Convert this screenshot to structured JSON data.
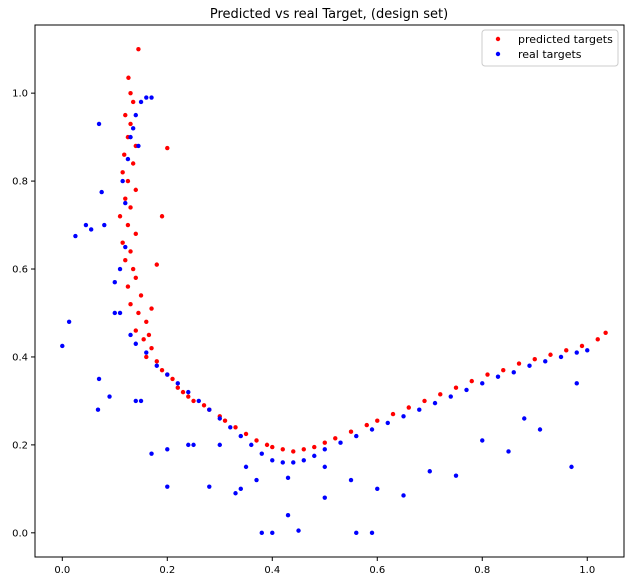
{
  "chart_data": {
    "type": "scatter",
    "title": "Predicted vs real Target, (design set)",
    "xlabel": "",
    "ylabel": "",
    "xlim": [
      -0.052,
      1.07
    ],
    "ylim": [
      -0.055,
      1.155
    ],
    "xticks": [
      "0.0",
      "0.2",
      "0.4",
      "0.6",
      "0.8",
      "1.0"
    ],
    "yticks": [
      "0.0",
      "0.2",
      "0.4",
      "0.6",
      "0.8",
      "1.0"
    ],
    "grid": false,
    "legend_position": "top-right",
    "series": [
      {
        "name": "predicted targets",
        "color": "#ff0000",
        "marker": "dot",
        "points": [
          [
            0.145,
            1.1
          ],
          [
            0.126,
            1.035
          ],
          [
            0.13,
            1.0
          ],
          [
            0.135,
            0.98
          ],
          [
            0.12,
            0.95
          ],
          [
            0.13,
            0.93
          ],
          [
            0.125,
            0.9
          ],
          [
            0.14,
            0.88
          ],
          [
            0.118,
            0.86
          ],
          [
            0.135,
            0.84
          ],
          [
            0.115,
            0.82
          ],
          [
            0.125,
            0.8
          ],
          [
            0.14,
            0.78
          ],
          [
            0.12,
            0.76
          ],
          [
            0.13,
            0.74
          ],
          [
            0.11,
            0.72
          ],
          [
            0.125,
            0.7
          ],
          [
            0.14,
            0.68
          ],
          [
            0.115,
            0.66
          ],
          [
            0.13,
            0.64
          ],
          [
            0.12,
            0.62
          ],
          [
            0.135,
            0.6
          ],
          [
            0.14,
            0.58
          ],
          [
            0.125,
            0.56
          ],
          [
            0.15,
            0.54
          ],
          [
            0.13,
            0.52
          ],
          [
            0.145,
            0.5
          ],
          [
            0.16,
            0.48
          ],
          [
            0.14,
            0.46
          ],
          [
            0.155,
            0.44
          ],
          [
            0.17,
            0.42
          ],
          [
            0.16,
            0.4
          ],
          [
            0.18,
            0.39
          ],
          [
            0.19,
            0.37
          ],
          [
            0.2,
            0.36
          ],
          [
            0.21,
            0.35
          ],
          [
            0.22,
            0.33
          ],
          [
            0.23,
            0.32
          ],
          [
            0.24,
            0.31
          ],
          [
            0.25,
            0.3
          ],
          [
            0.27,
            0.29
          ],
          [
            0.28,
            0.28
          ],
          [
            0.3,
            0.265
          ],
          [
            0.31,
            0.255
          ],
          [
            0.33,
            0.24
          ],
          [
            0.35,
            0.225
          ],
          [
            0.37,
            0.21
          ],
          [
            0.39,
            0.2
          ],
          [
            0.4,
            0.195
          ],
          [
            0.42,
            0.19
          ],
          [
            0.44,
            0.185
          ],
          [
            0.46,
            0.19
          ],
          [
            0.48,
            0.195
          ],
          [
            0.5,
            0.205
          ],
          [
            0.52,
            0.215
          ],
          [
            0.55,
            0.23
          ],
          [
            0.58,
            0.245
          ],
          [
            0.6,
            0.255
          ],
          [
            0.63,
            0.27
          ],
          [
            0.66,
            0.285
          ],
          [
            0.69,
            0.3
          ],
          [
            0.72,
            0.315
          ],
          [
            0.75,
            0.33
          ],
          [
            0.78,
            0.345
          ],
          [
            0.81,
            0.36
          ],
          [
            0.84,
            0.37
          ],
          [
            0.87,
            0.385
          ],
          [
            0.9,
            0.395
          ],
          [
            0.93,
            0.405
          ],
          [
            0.96,
            0.415
          ],
          [
            0.99,
            0.425
          ],
          [
            1.02,
            0.44
          ],
          [
            1.035,
            0.455
          ],
          [
            0.2,
            0.875
          ],
          [
            0.19,
            0.72
          ],
          [
            0.18,
            0.61
          ],
          [
            0.17,
            0.51
          ],
          [
            0.165,
            0.45
          ]
        ]
      },
      {
        "name": "real targets",
        "color": "#0000ff",
        "marker": "dot",
        "points": [
          [
            0.0,
            0.425
          ],
          [
            0.013,
            0.48
          ],
          [
            0.025,
            0.675
          ],
          [
            0.045,
            0.7
          ],
          [
            0.055,
            0.69
          ],
          [
            0.07,
            0.93
          ],
          [
            0.075,
            0.775
          ],
          [
            0.08,
            0.7
          ],
          [
            0.07,
            0.35
          ],
          [
            0.068,
            0.28
          ],
          [
            0.09,
            0.31
          ],
          [
            0.1,
            0.5
          ],
          [
            0.11,
            0.6
          ],
          [
            0.12,
            0.65
          ],
          [
            0.115,
            0.8
          ],
          [
            0.125,
            0.85
          ],
          [
            0.13,
            0.9
          ],
          [
            0.135,
            0.92
          ],
          [
            0.14,
            0.95
          ],
          [
            0.15,
            0.98
          ],
          [
            0.16,
            0.99
          ],
          [
            0.17,
            0.99
          ],
          [
            0.145,
            0.88
          ],
          [
            0.12,
            0.75
          ],
          [
            0.1,
            0.57
          ],
          [
            0.11,
            0.5
          ],
          [
            0.13,
            0.45
          ],
          [
            0.14,
            0.43
          ],
          [
            0.16,
            0.41
          ],
          [
            0.18,
            0.38
          ],
          [
            0.2,
            0.36
          ],
          [
            0.22,
            0.34
          ],
          [
            0.24,
            0.32
          ],
          [
            0.26,
            0.3
          ],
          [
            0.28,
            0.28
          ],
          [
            0.3,
            0.26
          ],
          [
            0.32,
            0.24
          ],
          [
            0.34,
            0.22
          ],
          [
            0.36,
            0.2
          ],
          [
            0.38,
            0.18
          ],
          [
            0.4,
            0.165
          ],
          [
            0.42,
            0.16
          ],
          [
            0.44,
            0.16
          ],
          [
            0.46,
            0.165
          ],
          [
            0.48,
            0.175
          ],
          [
            0.5,
            0.19
          ],
          [
            0.53,
            0.205
          ],
          [
            0.56,
            0.22
          ],
          [
            0.59,
            0.235
          ],
          [
            0.62,
            0.25
          ],
          [
            0.65,
            0.265
          ],
          [
            0.68,
            0.28
          ],
          [
            0.71,
            0.295
          ],
          [
            0.74,
            0.31
          ],
          [
            0.77,
            0.325
          ],
          [
            0.8,
            0.34
          ],
          [
            0.83,
            0.355
          ],
          [
            0.86,
            0.365
          ],
          [
            0.89,
            0.38
          ],
          [
            0.92,
            0.39
          ],
          [
            0.95,
            0.4
          ],
          [
            0.98,
            0.41
          ],
          [
            1.0,
            0.415
          ],
          [
            0.15,
            0.3
          ],
          [
            0.14,
            0.3
          ],
          [
            0.17,
            0.18
          ],
          [
            0.2,
            0.105
          ],
          [
            0.24,
            0.2
          ],
          [
            0.28,
            0.105
          ],
          [
            0.3,
            0.2
          ],
          [
            0.33,
            0.09
          ],
          [
            0.34,
            0.1
          ],
          [
            0.37,
            0.12
          ],
          [
            0.38,
            0.0
          ],
          [
            0.4,
            0.0
          ],
          [
            0.43,
            0.04
          ],
          [
            0.45,
            0.005
          ],
          [
            0.5,
            0.08
          ],
          [
            0.56,
            0.0
          ],
          [
            0.59,
            0.0
          ],
          [
            0.6,
            0.1
          ],
          [
            0.65,
            0.085
          ],
          [
            0.7,
            0.14
          ],
          [
            0.75,
            0.13
          ],
          [
            0.8,
            0.21
          ],
          [
            0.85,
            0.185
          ],
          [
            0.88,
            0.26
          ],
          [
            0.91,
            0.235
          ],
          [
            0.97,
            0.15
          ],
          [
            0.98,
            0.34
          ],
          [
            0.5,
            0.15
          ],
          [
            0.55,
            0.12
          ],
          [
            0.43,
            0.125
          ],
          [
            0.2,
            0.19
          ],
          [
            0.25,
            0.2
          ],
          [
            0.35,
            0.15
          ]
        ]
      }
    ]
  }
}
